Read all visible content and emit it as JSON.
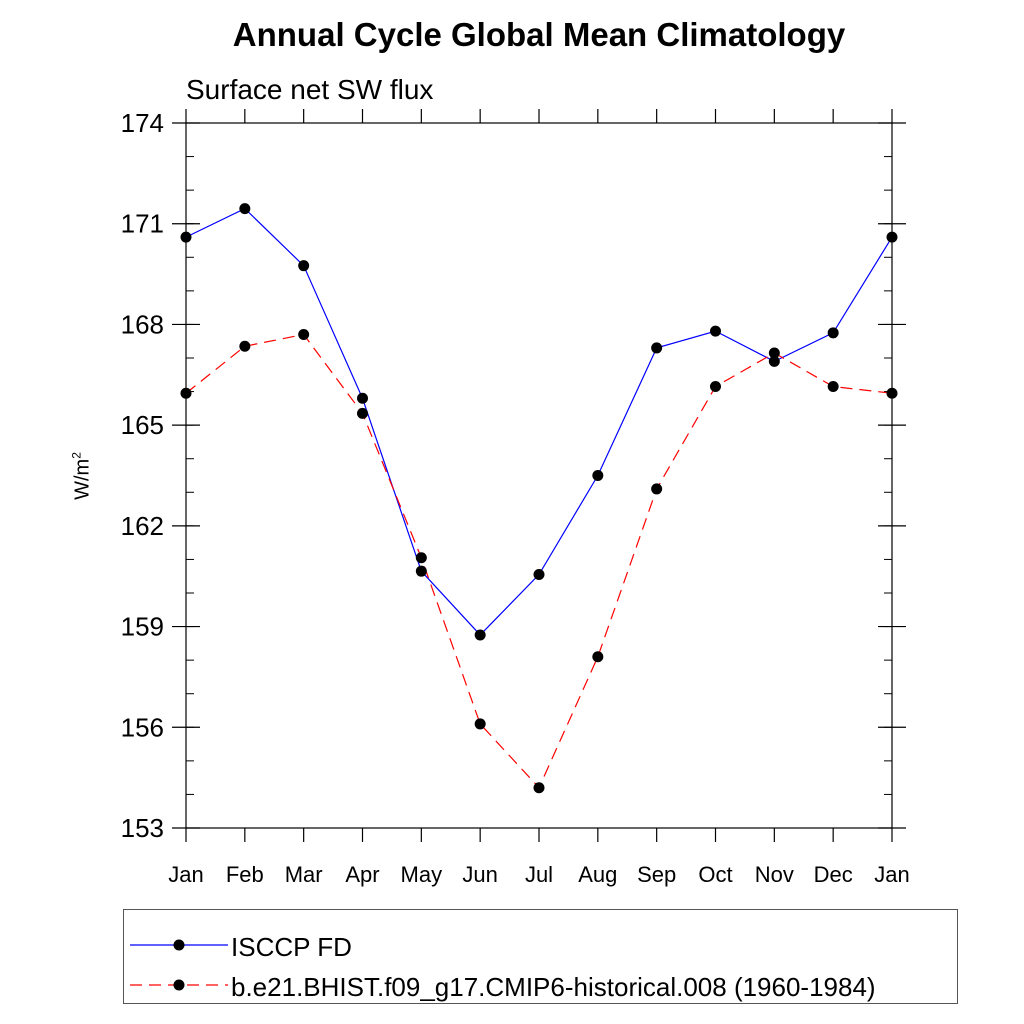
{
  "header": {
    "title": "Annual Cycle Global Mean Climatology",
    "subtitle": "Surface net SW flux"
  },
  "axes": {
    "ylabel_base": "W/m",
    "ylabel_sup": "2"
  },
  "chart_data": {
    "type": "line",
    "title": "Annual Cycle Global Mean Climatology",
    "subtitle": "Surface net SW flux",
    "ylabel": "W/m2",
    "xlabel": "",
    "categories": [
      "Jan",
      "Feb",
      "Mar",
      "Apr",
      "May",
      "Jun",
      "Jul",
      "Aug",
      "Sep",
      "Oct",
      "Nov",
      "Dec",
      "Jan"
    ],
    "ylim": [
      153,
      174
    ],
    "yticks": [
      153,
      156,
      159,
      162,
      165,
      168,
      171,
      174
    ],
    "grid": false,
    "legend_position": "bottom",
    "series": [
      {
        "name": "ISCCP FD",
        "color": "#0000ff",
        "dash": "solid",
        "values": [
          170.6,
          171.45,
          169.75,
          165.8,
          160.65,
          158.75,
          160.55,
          163.5,
          167.3,
          167.8,
          166.9,
          167.75,
          170.6
        ]
      },
      {
        "name": "b.e21.BHIST.f09_g17.CMIP6-historical.008 (1960-1984)",
        "color": "#ff0000",
        "dash": "dashed",
        "values": [
          165.95,
          167.35,
          167.7,
          165.35,
          161.05,
          156.1,
          154.2,
          158.1,
          163.1,
          166.15,
          167.15,
          166.15,
          165.95
        ]
      }
    ]
  }
}
